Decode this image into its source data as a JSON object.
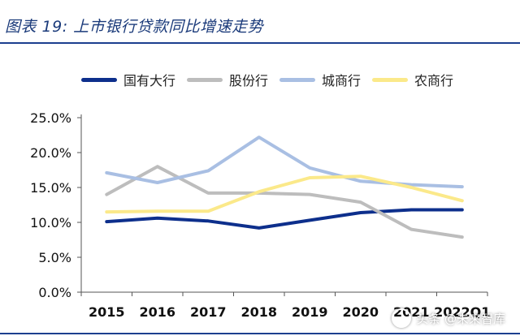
{
  "figure_title": "图表 19:  上市银行贷款同比增速走势",
  "watermark": "头条 @未来智库",
  "colors": {
    "title_rule": "#1c3f8f",
    "series": [
      "#0d2f8c",
      "#bdbdbd",
      "#a9bfe3",
      "#fbe98a"
    ]
  },
  "chart_data": {
    "type": "line",
    "categories": [
      "2015",
      "2016",
      "2017",
      "2018",
      "2019",
      "2020",
      "2021",
      "2022Q1"
    ],
    "y_ticks": [
      "0.0%",
      "5.0%",
      "10.0%",
      "15.0%",
      "20.0%",
      "25.0%"
    ],
    "ylim": [
      0,
      25
    ],
    "grid": false,
    "legend_position": "top",
    "series": [
      {
        "name": "国有大行",
        "values": [
          10.1,
          10.6,
          10.2,
          9.2,
          10.3,
          11.4,
          11.8,
          11.8
        ]
      },
      {
        "name": "股份行",
        "values": [
          14.0,
          18.0,
          14.2,
          14.2,
          14.0,
          12.9,
          9.0,
          7.9
        ]
      },
      {
        "name": "城商行",
        "values": [
          17.1,
          15.7,
          17.4,
          22.2,
          17.8,
          15.9,
          15.4,
          15.1
        ]
      },
      {
        "name": "农商行",
        "values": [
          11.5,
          11.6,
          11.6,
          14.4,
          16.4,
          16.6,
          15.0,
          13.1
        ]
      }
    ]
  }
}
